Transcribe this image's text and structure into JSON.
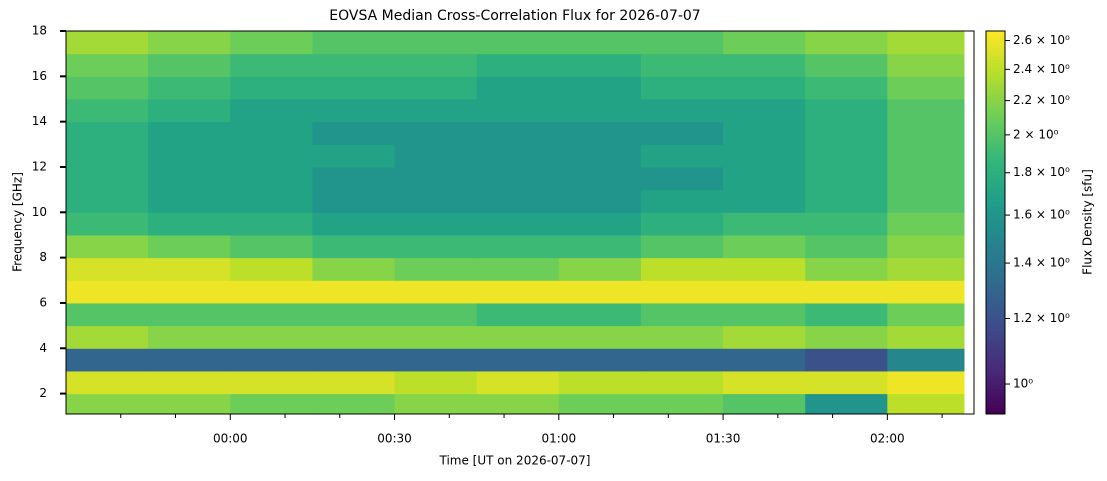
{
  "chart_data": {
    "type": "heatmap",
    "title": "EOVSA Median Cross-Correlation Flux for 2026-07-07",
    "xlabel": "Time [UT on 2026-07-07]",
    "ylabel": "Frequency [GHz]",
    "x_edges": [
      -30,
      -15,
      0,
      15,
      30,
      45,
      60,
      75,
      90,
      105,
      120,
      134
    ],
    "y_edges": [
      1.1,
      2,
      3,
      4,
      5,
      6,
      7,
      8,
      9,
      10,
      11,
      12,
      13,
      14,
      15,
      16,
      17,
      18
    ],
    "values": [
      [
        2.2,
        2.2,
        2.1,
        2.1,
        2.2,
        2.2,
        2.1,
        2.1,
        2.0,
        1.6,
        2.4
      ],
      [
        2.5,
        2.5,
        2.5,
        2.5,
        2.4,
        2.5,
        2.4,
        2.4,
        2.5,
        2.5,
        2.6
      ],
      [
        1.3,
        1.3,
        1.3,
        1.3,
        1.3,
        1.3,
        1.3,
        1.3,
        1.3,
        1.2,
        1.5
      ],
      [
        2.3,
        2.2,
        2.2,
        2.2,
        2.2,
        2.2,
        2.2,
        2.2,
        2.3,
        2.2,
        2.3
      ],
      [
        2.0,
        2.0,
        2.0,
        2.0,
        2.0,
        1.9,
        1.9,
        2.0,
        2.0,
        1.9,
        2.1
      ],
      [
        2.6,
        2.6,
        2.6,
        2.6,
        2.6,
        2.6,
        2.6,
        2.6,
        2.6,
        2.6,
        2.6
      ],
      [
        2.5,
        2.5,
        2.4,
        2.2,
        2.1,
        2.1,
        2.2,
        2.4,
        2.4,
        2.2,
        2.3
      ],
      [
        2.2,
        2.1,
        2.0,
        1.9,
        1.9,
        1.9,
        1.9,
        2.0,
        2.1,
        2.0,
        2.2
      ],
      [
        1.9,
        1.8,
        1.8,
        1.7,
        1.7,
        1.7,
        1.7,
        1.8,
        1.9,
        1.9,
        2.1
      ],
      [
        1.8,
        1.7,
        1.7,
        1.6,
        1.6,
        1.6,
        1.6,
        1.7,
        1.7,
        1.8,
        2.0
      ],
      [
        1.8,
        1.7,
        1.7,
        1.6,
        1.6,
        1.6,
        1.6,
        1.6,
        1.7,
        1.8,
        2.0
      ],
      [
        1.8,
        1.7,
        1.7,
        1.7,
        1.6,
        1.6,
        1.6,
        1.7,
        1.7,
        1.8,
        2.0
      ],
      [
        1.8,
        1.7,
        1.7,
        1.6,
        1.6,
        1.6,
        1.6,
        1.6,
        1.7,
        1.8,
        2.0
      ],
      [
        1.9,
        1.8,
        1.7,
        1.7,
        1.7,
        1.7,
        1.7,
        1.7,
        1.7,
        1.8,
        2.0
      ],
      [
        2.0,
        1.9,
        1.8,
        1.8,
        1.8,
        1.7,
        1.7,
        1.8,
        1.8,
        1.9,
        2.1
      ],
      [
        2.1,
        2.0,
        1.9,
        1.9,
        1.9,
        1.8,
        1.8,
        1.9,
        1.9,
        2.0,
        2.2
      ],
      [
        2.3,
        2.2,
        2.1,
        2.0,
        2.0,
        2.0,
        2.0,
        2.0,
        2.1,
        2.2,
        2.3
      ]
    ],
    "xlim": [
      -30,
      134
    ],
    "ylim": [
      1.1,
      18
    ],
    "xticks": [
      {
        "value": 0,
        "label": "00:00"
      },
      {
        "value": 30,
        "label": "00:30"
      },
      {
        "value": 60,
        "label": "01:00"
      },
      {
        "value": 90,
        "label": "01:30"
      },
      {
        "value": 120,
        "label": "02:00"
      }
    ],
    "xminorticks": [
      -20,
      -10,
      10,
      20,
      40,
      50,
      70,
      80,
      100,
      110,
      130
    ],
    "yticks": [
      2,
      4,
      6,
      8,
      10,
      12,
      14,
      16,
      18
    ],
    "colormap": "viridis",
    "colorbar": {
      "label": "Flux Density [sfu]",
      "log": true,
      "clim": [
        0.92,
        2.67
      ],
      "ticks": [
        {
          "value": 1.0,
          "label": "10⁰"
        },
        {
          "value": 1.2,
          "label": "1.2 × 10⁰"
        },
        {
          "value": 1.4,
          "label": "1.4 × 10⁰"
        },
        {
          "value": 1.6,
          "label": "1.6 × 10⁰"
        },
        {
          "value": 1.8,
          "label": "1.8 × 10⁰"
        },
        {
          "value": 2.0,
          "label": "2 × 10⁰"
        },
        {
          "value": 2.2,
          "label": "2.2 × 10⁰"
        },
        {
          "value": 2.4,
          "label": "2.4 × 10⁰"
        },
        {
          "value": 2.6,
          "label": "2.6 × 10⁰"
        }
      ]
    }
  }
}
